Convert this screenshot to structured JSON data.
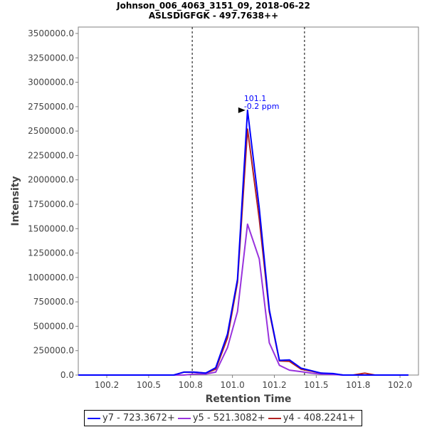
{
  "chart_data": {
    "type": "line",
    "title": "Johnson_006_4063_3151_09, 2018-06-22",
    "subtitle": "ASLSDIGFGK - 497.7638++",
    "xlabel": "Retention Time",
    "ylabel": "Intensity",
    "xlim": [
      100.08,
      102.11
    ],
    "ylim": [
      0,
      3500000
    ],
    "xticks": [
      100.25,
      100.5,
      100.75,
      101.0,
      101.25,
      101.5,
      101.75,
      102.0
    ],
    "xtick_labels": [
      "100.2",
      "100.5",
      "100.8",
      "101.0",
      "101.2",
      "101.5",
      "101.8",
      "102.0"
    ],
    "yticks": [
      0,
      250000,
      500000,
      750000,
      1000000,
      1250000,
      1500000,
      1750000,
      2000000,
      2250000,
      2500000,
      2750000,
      3000000,
      3250000,
      3500000
    ],
    "ytick_labels": [
      "0.0",
      "250000.0",
      "500000.0",
      "750000.0",
      "1000000.0",
      "1250000.0",
      "1500000.0",
      "1750000.0",
      "2000000.0",
      "2250000.0",
      "2500000.0",
      "2750000.0",
      "3000000.0",
      "3250000.0",
      "3500000.0"
    ],
    "x": [
      100.08,
      100.65,
      100.71,
      100.77,
      100.84,
      100.9,
      100.97,
      101.03,
      101.09,
      101.16,
      101.22,
      101.28,
      101.34,
      101.41,
      101.47,
      101.53,
      101.6,
      101.66,
      101.72,
      101.79,
      101.85,
      102.05
    ],
    "series": [
      {
        "name": "y7 - 723.3672+",
        "color": "#0000ff",
        "values": [
          0,
          0,
          30000,
          30000,
          20000,
          75000,
          420000,
          980000,
          2713000,
          1710000,
          670000,
          150000,
          155000,
          70000,
          45000,
          20000,
          15000,
          0,
          0,
          0,
          0,
          0
        ]
      },
      {
        "name": "y5 - 521.3082+",
        "color": "#9933dd",
        "values": [
          0,
          0,
          0,
          10000,
          10000,
          30000,
          280000,
          650000,
          1546000,
          1190000,
          330000,
          100000,
          50000,
          35000,
          20000,
          10000,
          5000,
          0,
          0,
          0,
          0,
          0
        ]
      },
      {
        "name": "y4 - 408.2241+",
        "color": "#b22222",
        "values": [
          0,
          0,
          30000,
          30000,
          20000,
          60000,
          380000,
          950000,
          2520000,
          1600000,
          650000,
          145000,
          140000,
          60000,
          40000,
          20000,
          10000,
          0,
          0,
          20000,
          0,
          0
        ]
      }
    ],
    "vlines": [
      100.76,
      101.43
    ],
    "annotation": {
      "x": 101.09,
      "y": 2713000,
      "line1": "101.1",
      "line2": "-0.2 ppm",
      "color": "#0000ff"
    },
    "legend_position": "bottom"
  }
}
